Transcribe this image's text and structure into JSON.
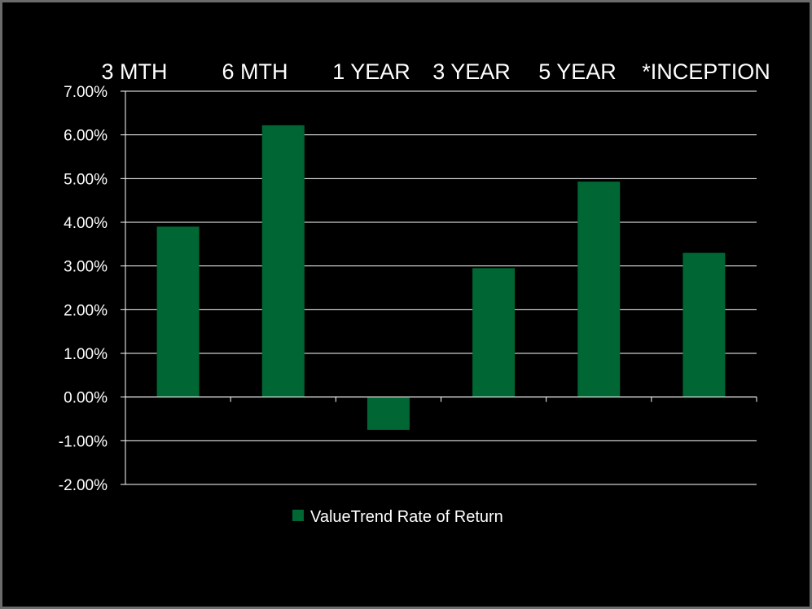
{
  "chart_data": {
    "type": "bar",
    "categories": [
      "3 MTH",
      "6 MTH",
      "1 YEAR",
      "3 YEAR",
      "5 YEAR",
      "*INCEPTION"
    ],
    "series": [
      {
        "name": "ValueTrend Rate of Return",
        "values": [
          3.9,
          6.22,
          -0.75,
          2.95,
          4.93,
          3.3
        ],
        "color": "#006633"
      }
    ],
    "y_ticks": [
      "7.00%",
      "6.00%",
      "5.00%",
      "4.00%",
      "3.00%",
      "2.00%",
      "1.00%",
      "0.00%",
      "-1.00%",
      "-2.00%"
    ],
    "ylim": [
      -2,
      7
    ],
    "y_unit": "%",
    "grid": true,
    "category_labels_position": "top",
    "legend_position": "bottom",
    "colors": {
      "background": "#000000",
      "text": "#ffffff",
      "grid": "#ffffff"
    }
  }
}
